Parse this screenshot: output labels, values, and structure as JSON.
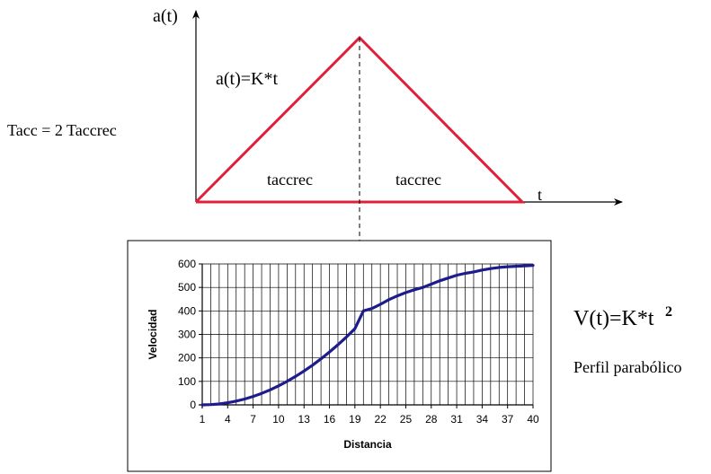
{
  "triangle_diagram": {
    "y_axis_label": "a(t)",
    "x_axis_label": "t",
    "formula": "a(t)=K*t",
    "left_label": "taccrec",
    "right_label": "taccrec",
    "line_color": "#e0203a"
  },
  "side_text": {
    "tacc": "Tacc = 2 Taccrec",
    "velocity_formula_base": "V(t)=K*t",
    "velocity_formula_exp": "2",
    "profile_label": "Perfil parabólico"
  },
  "chart_data": {
    "type": "line",
    "xlabel": "Distancia",
    "ylabel": "Velocidad",
    "xlim": [
      1,
      40
    ],
    "ylim": [
      0,
      600
    ],
    "grid": true,
    "legend": "none",
    "x_ticks": [
      1,
      4,
      7,
      10,
      13,
      16,
      19,
      22,
      25,
      28,
      31,
      34,
      37,
      40
    ],
    "y_ticks": [
      0,
      100,
      200,
      300,
      400,
      500,
      600
    ],
    "line_color": "#1c1c8c",
    "series": [
      {
        "x": [
          1,
          2,
          3,
          4,
          5,
          6,
          7,
          8,
          9,
          10,
          11,
          12,
          13,
          14,
          15,
          16,
          17,
          18,
          19,
          20,
          21,
          22,
          23,
          24,
          25,
          26,
          27,
          28,
          29,
          30,
          31,
          32,
          33,
          34,
          35,
          36,
          37,
          38,
          39,
          40
        ],
        "values": [
          0,
          1,
          4,
          9,
          16,
          25,
          36,
          49,
          64,
          81,
          100,
          121,
          144,
          169,
          196,
          225,
          256,
          289,
          324,
          400,
          410,
          428,
          448,
          464,
          478,
          490,
          500,
          514,
          528,
          540,
          552,
          560,
          566,
          574,
          580,
          585,
          588,
          590,
          592,
          594
        ]
      }
    ]
  }
}
